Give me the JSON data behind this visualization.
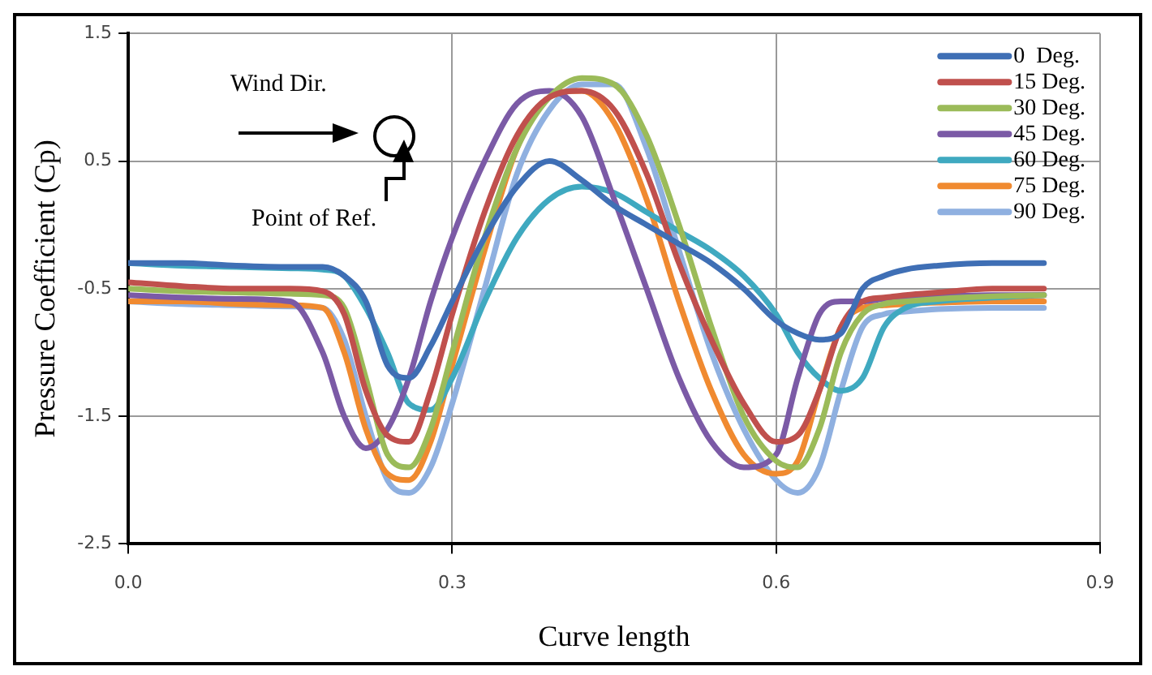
{
  "chart_data": {
    "type": "line",
    "xlabel": "Curve length",
    "ylabel": "Pressure Coefficient (Cp)",
    "x": [
      0,
      0.05,
      0.1,
      0.15,
      0.18,
      0.2,
      0.22,
      0.24,
      0.26,
      0.28,
      0.3,
      0.33,
      0.36,
      0.39,
      0.42,
      0.45,
      0.48,
      0.51,
      0.54,
      0.57,
      0.6,
      0.62,
      0.64,
      0.66,
      0.68,
      0.7,
      0.72,
      0.75,
      0.8,
      0.848
    ],
    "series": [
      {
        "name": "0  Deg.",
        "color": "#3f6fb5",
        "values": [
          -0.3,
          -0.3,
          -0.32,
          -0.33,
          -0.33,
          -0.4,
          -0.6,
          -1.1,
          -1.2,
          -0.95,
          -0.6,
          -0.1,
          0.3,
          0.5,
          0.35,
          0.15,
          0.0,
          -0.15,
          -0.3,
          -0.5,
          -0.75,
          -0.85,
          -0.9,
          -0.85,
          -0.5,
          -0.4,
          -0.35,
          -0.32,
          -0.3,
          -0.3
        ]
      },
      {
        "name": "15 Deg.",
        "color": "#c0504d",
        "values": [
          -0.45,
          -0.48,
          -0.5,
          -0.5,
          -0.52,
          -0.7,
          -1.3,
          -1.65,
          -1.7,
          -1.3,
          -0.7,
          0.1,
          0.7,
          1.0,
          1.05,
          0.9,
          0.4,
          -0.3,
          -0.9,
          -1.4,
          -1.7,
          -1.65,
          -1.3,
          -0.8,
          -0.6,
          -0.57,
          -0.55,
          -0.53,
          -0.5,
          -0.5
        ]
      },
      {
        "name": "30 Deg.",
        "color": "#9bbb59",
        "values": [
          -0.5,
          -0.52,
          -0.53,
          -0.54,
          -0.55,
          -0.65,
          -1.2,
          -1.8,
          -1.9,
          -1.6,
          -1.0,
          -0.1,
          0.6,
          1.0,
          1.15,
          1.1,
          0.7,
          0.0,
          -0.8,
          -1.5,
          -1.85,
          -1.9,
          -1.6,
          -1.0,
          -0.7,
          -0.62,
          -0.6,
          -0.58,
          -0.56,
          -0.55
        ]
      },
      {
        "name": "45 Deg.",
        "color": "#7b5aa6",
        "values": [
          -0.55,
          -0.57,
          -0.58,
          -0.6,
          -1.0,
          -1.5,
          -1.75,
          -1.6,
          -1.2,
          -0.6,
          -0.1,
          0.5,
          0.95,
          1.05,
          0.85,
          0.2,
          -0.5,
          -1.2,
          -1.7,
          -1.9,
          -1.8,
          -1.2,
          -0.7,
          -0.6,
          -0.6,
          -0.58,
          -0.57,
          -0.56,
          -0.55,
          -0.55
        ]
      },
      {
        "name": "60 Deg.",
        "color": "#3fa9c0",
        "values": [
          -0.3,
          -0.32,
          -0.33,
          -0.34,
          -0.35,
          -0.4,
          -0.65,
          -1.0,
          -1.4,
          -1.45,
          -1.2,
          -0.6,
          -0.1,
          0.2,
          0.3,
          0.25,
          0.1,
          -0.05,
          -0.2,
          -0.4,
          -0.7,
          -1.0,
          -1.2,
          -1.3,
          -1.2,
          -0.8,
          -0.65,
          -0.6,
          -0.57,
          -0.55
        ]
      },
      {
        "name": "75 Deg.",
        "color": "#f08a30",
        "values": [
          -0.6,
          -0.6,
          -0.62,
          -0.63,
          -0.65,
          -1.0,
          -1.6,
          -1.95,
          -2.0,
          -1.7,
          -1.1,
          -0.2,
          0.6,
          1.0,
          1.05,
          0.8,
          0.2,
          -0.6,
          -1.3,
          -1.8,
          -1.95,
          -1.85,
          -1.3,
          -0.8,
          -0.65,
          -0.63,
          -0.62,
          -0.61,
          -0.6,
          -0.6
        ]
      },
      {
        "name": "90 Deg.",
        "color": "#8fb0e0",
        "values": [
          -0.6,
          -0.62,
          -0.63,
          -0.64,
          -0.65,
          -0.9,
          -1.5,
          -2.0,
          -2.1,
          -1.9,
          -1.4,
          -0.5,
          0.4,
          0.9,
          1.1,
          1.1,
          0.6,
          -0.2,
          -1.0,
          -1.6,
          -2.0,
          -2.1,
          -1.9,
          -1.3,
          -0.8,
          -0.7,
          -0.68,
          -0.66,
          -0.65,
          -0.65
        ]
      }
    ],
    "xlim": [
      0,
      0.9
    ],
    "xticks": [
      {
        "value": 0,
        "label": "0.0"
      },
      0.3,
      0.6,
      0.9
    ],
    "ylim": [
      -2.5,
      1.5
    ],
    "yticks": [
      -2.5,
      -1.5,
      -0.5,
      0.5,
      1.5
    ],
    "grid": true,
    "legend": "top right",
    "marker": "none",
    "line_style": "solid",
    "annotations": [
      "Wind Dir.",
      "Point of Ref."
    ]
  }
}
